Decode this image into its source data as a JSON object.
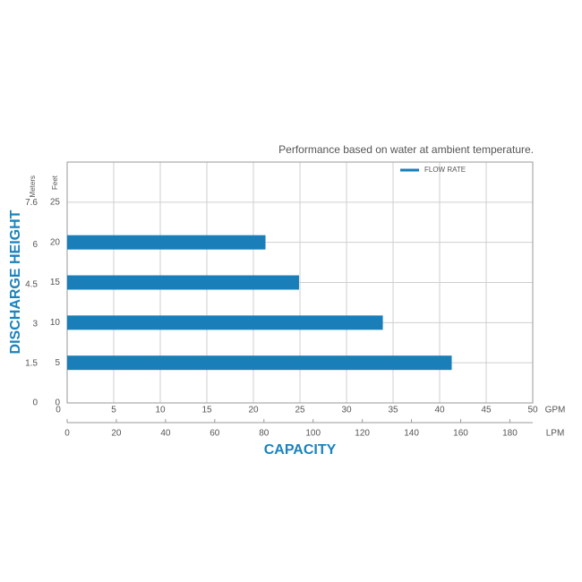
{
  "chart_data": {
    "type": "hbar",
    "title": "Performance based on water at ambient temperature.",
    "x_label": "CAPACITY",
    "y_label": "DISCHARGE HEIGHT",
    "x_unit": "GPM",
    "x2_unit": "LPM",
    "y_unit": "Feet",
    "y2_unit": "Meters",
    "y": [
      5,
      10,
      15,
      20
    ],
    "series": [
      {
        "name": "FLOW RATE",
        "color": "#1a7fb8",
        "values": [
          41.3,
          33.9,
          24.9,
          21.3
        ]
      }
    ],
    "xlim": [
      0,
      50
    ],
    "xticks": [
      0,
      5,
      10,
      15,
      20,
      25,
      30,
      35,
      40,
      45,
      50
    ],
    "x2lim": [
      0,
      189.3
    ],
    "x2ticks": [
      0,
      20,
      40,
      60,
      80,
      100,
      120,
      140,
      160,
      180
    ],
    "ylim": [
      0,
      30
    ],
    "yticks": [
      0,
      5,
      10,
      15,
      20,
      25
    ],
    "y2lim": [
      0,
      9.144
    ],
    "y2ticks": [
      0,
      1.5,
      3,
      4.5,
      6,
      7.6
    ],
    "grid": true
  }
}
